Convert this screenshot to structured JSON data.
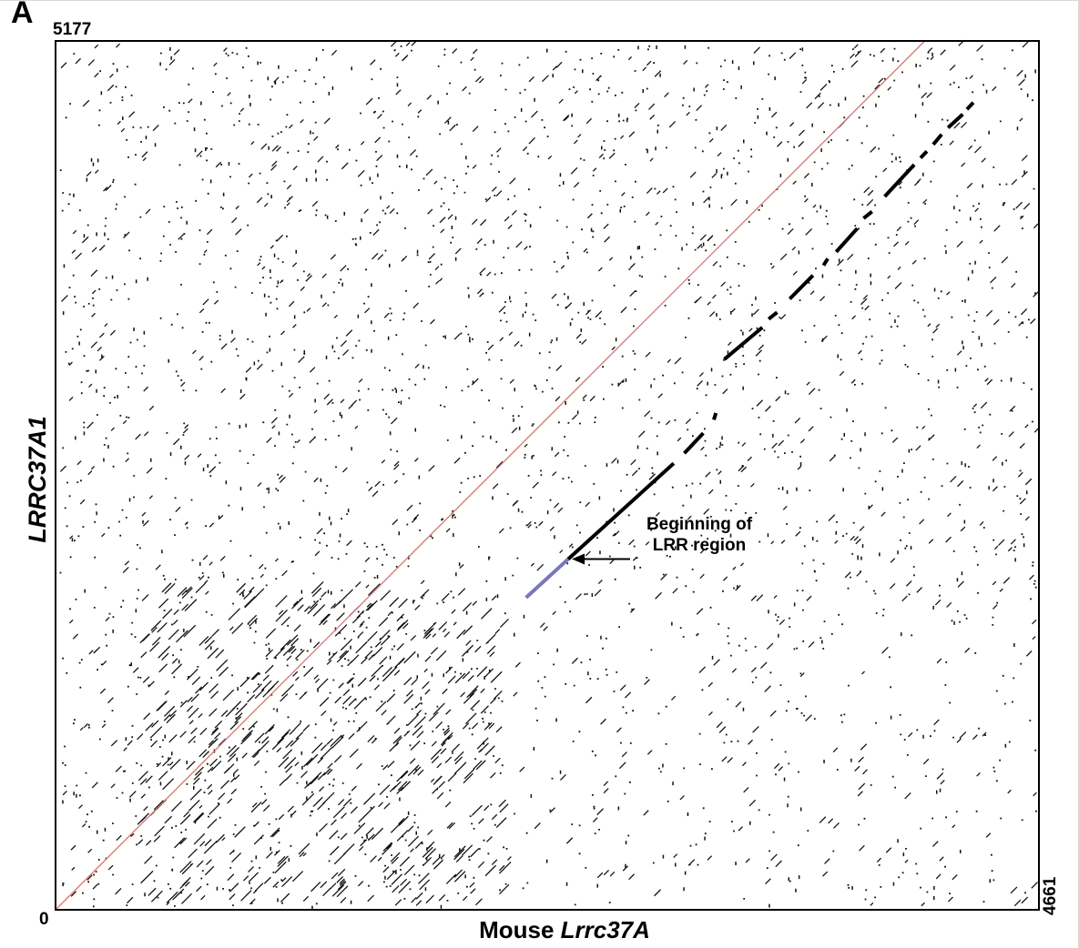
{
  "figure": {
    "panel_label": "A"
  },
  "chart_data": {
    "type": "scatter",
    "subtype": "dot-plot",
    "title": "",
    "xlabel_prefix": "Mouse",
    "xlabel_gene": "Lrrc37A",
    "ylabel": "LRRC37A1",
    "xlim": [
      0,
      4661
    ],
    "ylim": [
      0,
      5177
    ],
    "x_tick_labels": [
      "0",
      "4661"
    ],
    "y_tick_labels": [
      "5177"
    ],
    "background_noise": "scattered short dots across the whole plot",
    "series": [
      {
        "name": "",
        "kind": "reference-diagonal",
        "color": "#e07070",
        "points": [
          [
            0,
            0
          ],
          [
            4120,
            5177
          ]
        ]
      },
      {
        "name": "",
        "kind": "alignment-highlight",
        "color": "#7777bb",
        "points": [
          [
            2230,
            1860
          ],
          [
            2430,
            2090
          ]
        ]
      },
      {
        "name": "",
        "kind": "alignment",
        "color": "#000000",
        "segments": [
          [
            [
              2430,
              2090
            ],
            [
              2930,
              2660
            ]
          ],
          [
            [
              2980,
              2720
            ],
            [
              3070,
              2840
            ]
          ],
          [
            [
              3120,
              2920
            ],
            [
              3130,
              2960
            ]
          ],
          [
            [
              3170,
              3280
            ],
            [
              3350,
              3470
            ]
          ],
          [
            [
              3380,
              3520
            ],
            [
              3420,
              3560
            ]
          ],
          [
            [
              3480,
              3640
            ],
            [
              3590,
              3780
            ]
          ],
          [
            [
              3640,
              3840
            ],
            [
              3660,
              3880
            ]
          ],
          [
            [
              3700,
              3920
            ],
            [
              3800,
              4060
            ]
          ],
          [
            [
              3830,
              4120
            ],
            [
              3870,
              4160
            ]
          ],
          [
            [
              3930,
              4250
            ],
            [
              4070,
              4440
            ]
          ],
          [
            [
              4100,
              4480
            ],
            [
              4130,
              4520
            ]
          ],
          [
            [
              4160,
              4560
            ],
            [
              4200,
              4620
            ]
          ],
          [
            [
              4230,
              4660
            ],
            [
              4300,
              4740
            ]
          ],
          [
            [
              4320,
              4770
            ],
            [
              4350,
              4810
            ]
          ]
        ]
      }
    ],
    "annotation": {
      "line1": "Beginning of",
      "line2": "LRR region",
      "arrow_target": [
        2430,
        2090
      ]
    }
  }
}
